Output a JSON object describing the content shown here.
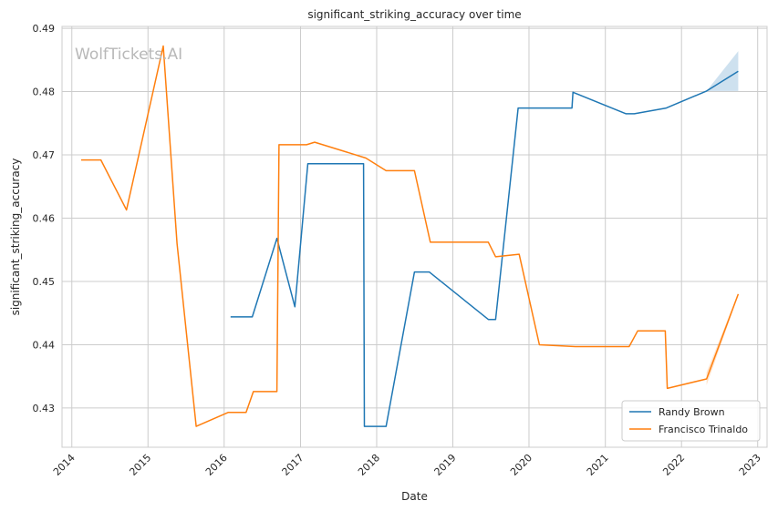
{
  "watermark": "WolfTickets.AI",
  "chart_data": {
    "type": "line",
    "title": "significant_striking_accuracy over time",
    "xlabel": "Date",
    "ylabel": "significant_striking_accuracy",
    "x_ticks": [
      "2014",
      "2015",
      "2016",
      "2017",
      "2018",
      "2019",
      "2020",
      "2021",
      "2022",
      "2023"
    ],
    "y_ticks": [
      "0.43",
      "0.44",
      "0.45",
      "0.46",
      "0.47",
      "0.48",
      "0.49"
    ],
    "xlim": [
      "2013-11-15",
      "2023-02-15"
    ],
    "ylim": [
      0.4238,
      0.4903
    ],
    "grid": true,
    "legend_position": "lower-right",
    "series": [
      {
        "name": "Randy Brown",
        "color": "#1f77b4",
        "points": [
          [
            "2016-02-01",
            0.4444
          ],
          [
            "2016-05-15",
            0.4444
          ],
          [
            "2016-09-10",
            0.4568
          ],
          [
            "2016-12-05",
            0.446
          ],
          [
            "2017-02-05",
            0.4686
          ],
          [
            "2017-10-30",
            0.4686
          ],
          [
            "2017-11-03",
            0.4271
          ],
          [
            "2018-02-15",
            0.4271
          ],
          [
            "2018-07-01",
            0.4515
          ],
          [
            "2018-09-10",
            0.4515
          ],
          [
            "2019-06-20",
            0.444
          ],
          [
            "2019-07-25",
            0.444
          ],
          [
            "2019-11-10",
            0.4774
          ],
          [
            "2020-07-25",
            0.4774
          ],
          [
            "2020-07-30",
            0.4799
          ],
          [
            "2021-04-10",
            0.4765
          ],
          [
            "2021-05-20",
            0.4765
          ],
          [
            "2021-10-20",
            0.4774
          ],
          [
            "2022-05-01",
            0.4801
          ],
          [
            "2022-09-30",
            0.4832
          ]
        ],
        "band": [
          [
            "2022-05-01",
            0.4801,
            0.4801
          ],
          [
            "2022-09-30",
            0.4801,
            0.4864
          ]
        ]
      },
      {
        "name": "Francisco Trinaldo",
        "color": "#ff7f0e",
        "points": [
          [
            "2014-02-15",
            0.4692
          ],
          [
            "2014-05-20",
            0.4692
          ],
          [
            "2014-09-20",
            0.4613
          ],
          [
            "2015-03-15",
            0.4872
          ],
          [
            "2015-05-20",
            0.456
          ],
          [
            "2015-08-20",
            0.4271
          ],
          [
            "2016-01-20",
            0.4293
          ],
          [
            "2016-04-15",
            0.4293
          ],
          [
            "2016-05-20",
            0.4326
          ],
          [
            "2016-09-10",
            0.4326
          ],
          [
            "2016-09-20",
            0.4716
          ],
          [
            "2017-01-30",
            0.4716
          ],
          [
            "2017-03-10",
            0.472
          ],
          [
            "2017-11-10",
            0.4695
          ],
          [
            "2018-02-15",
            0.4675
          ],
          [
            "2018-07-01",
            0.4675
          ],
          [
            "2018-09-15",
            0.4562
          ],
          [
            "2019-06-20",
            0.4562
          ],
          [
            "2019-07-25",
            0.4539
          ],
          [
            "2019-11-15",
            0.4543
          ],
          [
            "2020-02-20",
            0.44
          ],
          [
            "2020-08-10",
            0.4397
          ],
          [
            "2021-04-25",
            0.4397
          ],
          [
            "2021-06-05",
            0.4422
          ],
          [
            "2021-10-15",
            0.4422
          ],
          [
            "2021-10-25",
            0.4331
          ],
          [
            "2022-05-01",
            0.4346
          ],
          [
            "2022-09-30",
            0.448
          ]
        ],
        "band": [
          [
            "2022-05-01",
            0.4336,
            0.4356
          ],
          [
            "2022-09-30",
            0.4478,
            0.4482
          ]
        ]
      }
    ]
  }
}
